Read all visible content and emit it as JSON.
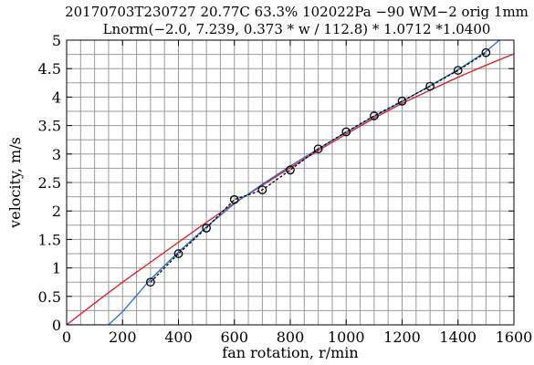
{
  "chart_data": {
    "type": "line",
    "title_line1": "20170703T230727 20.77C 63.3% 102022Pa −90 WM−2 orig 1mm",
    "title_line2": "Lnorm(−2.0, 7.239, 0.373 * w / 112.8) * 1.0712 *1.0400",
    "xlabel": "fan rotation, r/min",
    "ylabel": "velocity, m/s",
    "xlim": [
      0,
      1600
    ],
    "ylim": [
      0,
      5
    ],
    "xticks": [
      0,
      200,
      400,
      600,
      800,
      1000,
      1200,
      1400,
      1600
    ],
    "yticks": [
      0,
      0.5,
      1,
      1.5,
      2,
      2.5,
      3,
      3.5,
      4,
      4.5,
      5
    ],
    "xtick_labels": [
      "0",
      "200",
      "400",
      "600",
      "800",
      "1000",
      "1200",
      "1400",
      "1600"
    ],
    "ytick_labels": [
      "0",
      "0.5",
      "1",
      "1.5",
      "2",
      "2.5",
      "3",
      "3.5",
      "4",
      "4.5",
      "5"
    ],
    "grid": true,
    "grid_x_step": 50,
    "grid_y_step": 0.25,
    "series": [
      {
        "style": "dashed-markers",
        "color": "#000000",
        "marker": "circle",
        "x": [
          300,
          400,
          500,
          600,
          700,
          800,
          900,
          1000,
          1100,
          1200,
          1300,
          1400,
          1500
        ],
        "y": [
          0.75,
          1.25,
          1.7,
          2.2,
          2.37,
          2.72,
          3.09,
          3.39,
          3.67,
          3.93,
          4.19,
          4.47,
          4.78
        ]
      },
      {
        "style": "solid",
        "color": "#1f6fd6",
        "x": [
          0,
          150,
          200,
          300,
          400,
          500,
          600,
          700,
          800,
          900,
          1000,
          1100,
          1200,
          1300,
          1400,
          1500,
          1600
        ],
        "y": [
          0,
          0,
          0.23,
          0.8,
          1.28,
          1.72,
          2.13,
          2.47,
          2.79,
          3.09,
          3.38,
          3.66,
          3.92,
          4.2,
          4.48,
          4.8,
          5.22
        ]
      },
      {
        "style": "solid",
        "color": "#e01b24",
        "x": [
          0,
          100,
          200,
          300,
          400,
          500,
          600,
          700,
          800,
          900,
          1000,
          1100,
          1200,
          1300,
          1400,
          1500,
          1600
        ],
        "y": [
          0,
          0.38,
          0.75,
          1.1,
          1.45,
          1.8,
          2.14,
          2.45,
          2.76,
          3.06,
          3.35,
          3.63,
          3.89,
          4.12,
          4.35,
          4.56,
          4.76
        ]
      }
    ]
  }
}
